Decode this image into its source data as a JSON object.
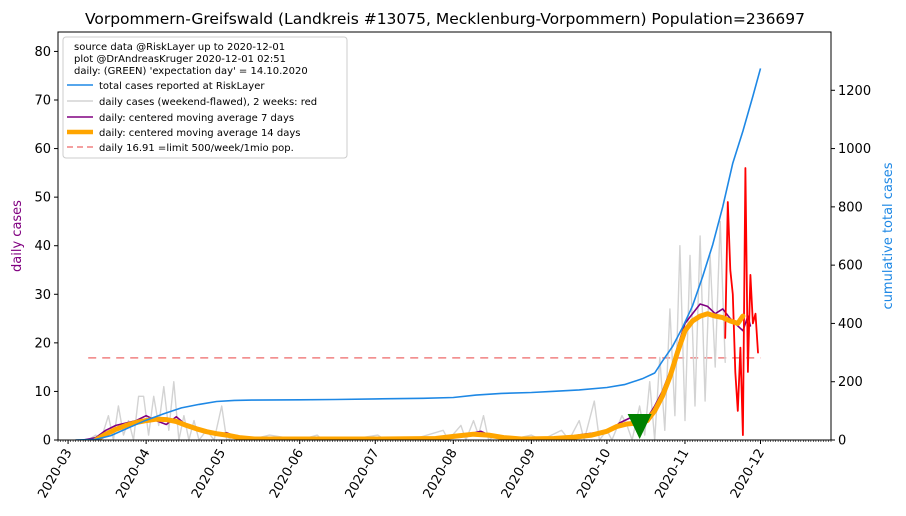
{
  "chart_data": {
    "type": "line",
    "title": "Vorpommern-Greifswald (Landkreis #13075, Mecklenburg-Vorpommern) Population=236697",
    "ylabel_left": "daily cases",
    "ylabel_right": "cumulative total cases",
    "xlim": [
      "2020-02-26",
      "2020-12-29"
    ],
    "ylim_left": [
      0,
      84
    ],
    "ylim_right": [
      0,
      1400
    ],
    "x_ticks": [
      "2020-03",
      "2020-04",
      "2020-05",
      "2020-06",
      "2020-07",
      "2020-08",
      "2020-09",
      "2020-10",
      "2020-11",
      "2020-12"
    ],
    "y_left_ticks": [
      "0",
      "10",
      "20",
      "30",
      "40",
      "50",
      "60",
      "70",
      "80"
    ],
    "y_right_ticks": [
      "0",
      "200",
      "400",
      "600",
      "800",
      "1000",
      "1200"
    ],
    "legend": {
      "placement": "upper-left",
      "header_lines": [
        "source data @RiskLayer up to 2020-12-01",
        "plot @DrAndreasKruger 2020-12-01 02:51",
        "daily: (GREEN) 'expectation day' = 14.10.2020"
      ],
      "entries": [
        "total cases reported at RiskLayer",
        "daily cases (weekend-flawed), 2 weeks: red",
        "daily: centered moving average 7 days",
        "daily: centered moving average 14 days",
        "daily 16.91 =limit 500/week/1mio pop."
      ]
    },
    "colors": {
      "total": "#1e88e5",
      "daily": "#d3d3d3",
      "daily_recent": "#ff0000",
      "ma7": "#800080",
      "ma14": "#ffa500",
      "limit": "#f08080",
      "expectation_marker": "#008000",
      "ylabel_left": "#800080",
      "ylabel_right": "#1e88e5"
    },
    "limit_value": 16.91,
    "limit_range": [
      "2020-03-09",
      "2020-12-01"
    ],
    "expectation_day": "2020-10-14",
    "series": [
      {
        "name": "total cases reported at RiskLayer",
        "axis": "right",
        "points": [
          [
            "2020-03-04",
            0
          ],
          [
            "2020-03-12",
            2
          ],
          [
            "2020-03-18",
            15
          ],
          [
            "2020-03-25",
            42
          ],
          [
            "2020-04-01",
            68
          ],
          [
            "2020-04-08",
            90
          ],
          [
            "2020-04-15",
            110
          ],
          [
            "2020-04-22",
            122
          ],
          [
            "2020-04-29",
            132
          ],
          [
            "2020-05-06",
            136
          ],
          [
            "2020-05-13",
            137
          ],
          [
            "2020-06-01",
            138
          ],
          [
            "2020-06-15",
            139
          ],
          [
            "2020-07-01",
            141
          ],
          [
            "2020-07-20",
            143
          ],
          [
            "2020-08-01",
            146
          ],
          [
            "2020-08-10",
            154
          ],
          [
            "2020-08-20",
            160
          ],
          [
            "2020-09-01",
            163
          ],
          [
            "2020-09-10",
            167
          ],
          [
            "2020-09-20",
            172
          ],
          [
            "2020-10-01",
            180
          ],
          [
            "2020-10-08",
            190
          ],
          [
            "2020-10-15",
            210
          ],
          [
            "2020-10-20",
            230
          ],
          [
            "2020-10-23",
            270
          ],
          [
            "2020-10-27",
            320
          ],
          [
            "2020-10-31",
            385
          ],
          [
            "2020-11-04",
            460
          ],
          [
            "2020-11-08",
            560
          ],
          [
            "2020-11-12",
            670
          ],
          [
            "2020-11-16",
            800
          ],
          [
            "2020-11-20",
            950
          ],
          [
            "2020-11-24",
            1060
          ],
          [
            "2020-11-28",
            1180
          ],
          [
            "2020-12-01",
            1275
          ]
        ]
      },
      {
        "name": "daily cases (weekend-flawed), 2 weeks: red",
        "axis": "left",
        "points": [
          [
            "2020-03-04",
            0
          ],
          [
            "2020-03-09",
            0
          ],
          [
            "2020-03-12",
            1
          ],
          [
            "2020-03-14",
            0
          ],
          [
            "2020-03-17",
            5
          ],
          [
            "2020-03-19",
            0
          ],
          [
            "2020-03-21",
            7
          ],
          [
            "2020-03-23",
            1
          ],
          [
            "2020-03-25",
            4
          ],
          [
            "2020-03-27",
            0
          ],
          [
            "2020-03-29",
            9
          ],
          [
            "2020-03-31",
            9
          ],
          [
            "2020-04-02",
            1
          ],
          [
            "2020-04-04",
            9
          ],
          [
            "2020-04-06",
            3
          ],
          [
            "2020-04-08",
            11
          ],
          [
            "2020-04-10",
            2
          ],
          [
            "2020-04-12",
            12
          ],
          [
            "2020-04-14",
            0
          ],
          [
            "2020-04-16",
            5
          ],
          [
            "2020-04-18",
            0
          ],
          [
            "2020-04-20",
            4
          ],
          [
            "2020-04-22",
            0
          ],
          [
            "2020-04-25",
            2
          ],
          [
            "2020-04-28",
            0
          ],
          [
            "2020-05-01",
            7
          ],
          [
            "2020-05-03",
            0
          ],
          [
            "2020-05-07",
            1
          ],
          [
            "2020-05-12",
            0
          ],
          [
            "2020-05-20",
            1
          ],
          [
            "2020-06-01",
            0
          ],
          [
            "2020-06-08",
            1
          ],
          [
            "2020-06-10",
            0
          ],
          [
            "2020-06-20",
            0
          ],
          [
            "2020-07-02",
            1
          ],
          [
            "2020-07-05",
            0
          ],
          [
            "2020-07-15",
            0
          ],
          [
            "2020-07-28",
            2
          ],
          [
            "2020-07-30",
            0
          ],
          [
            "2020-08-04",
            3
          ],
          [
            "2020-08-06",
            0
          ],
          [
            "2020-08-09",
            4
          ],
          [
            "2020-08-11",
            1
          ],
          [
            "2020-08-13",
            5
          ],
          [
            "2020-08-15",
            0
          ],
          [
            "2020-08-18",
            1
          ],
          [
            "2020-08-23",
            0
          ],
          [
            "2020-09-01",
            1
          ],
          [
            "2020-09-05",
            0
          ],
          [
            "2020-09-13",
            2
          ],
          [
            "2020-09-16",
            0
          ],
          [
            "2020-09-20",
            4
          ],
          [
            "2020-09-22",
            0
          ],
          [
            "2020-09-26",
            8
          ],
          [
            "2020-09-28",
            0
          ],
          [
            "2020-10-01",
            2
          ],
          [
            "2020-10-03",
            0
          ],
          [
            "2020-10-07",
            5
          ],
          [
            "2020-10-09",
            3
          ],
          [
            "2020-10-11",
            0
          ],
          [
            "2020-10-14",
            7
          ],
          [
            "2020-10-16",
            1
          ],
          [
            "2020-10-18",
            12
          ],
          [
            "2020-10-20",
            0
          ],
          [
            "2020-10-22",
            17
          ],
          [
            "2020-10-24",
            2
          ],
          [
            "2020-10-26",
            27
          ],
          [
            "2020-10-28",
            5
          ],
          [
            "2020-10-30",
            40
          ],
          [
            "2020-11-01",
            4
          ],
          [
            "2020-11-03",
            38
          ],
          [
            "2020-11-05",
            7
          ],
          [
            "2020-11-07",
            42
          ],
          [
            "2020-11-09",
            8
          ],
          [
            "2020-11-11",
            38
          ],
          [
            "2020-11-13",
            15
          ],
          [
            "2020-11-15",
            45
          ],
          [
            "2020-11-17",
            16
          ]
        ]
      },
      {
        "name": "daily cases, last 2 weeks (red)",
        "axis": "left",
        "points": [
          [
            "2020-11-17",
            21
          ],
          [
            "2020-11-18",
            49
          ],
          [
            "2020-11-19",
            35
          ],
          [
            "2020-11-20",
            30
          ],
          [
            "2020-11-21",
            14
          ],
          [
            "2020-11-22",
            6
          ],
          [
            "2020-11-23",
            19
          ],
          [
            "2020-11-24",
            1
          ],
          [
            "2020-11-25",
            56
          ],
          [
            "2020-11-26",
            14
          ],
          [
            "2020-11-27",
            34
          ],
          [
            "2020-11-28",
            24
          ],
          [
            "2020-11-29",
            26
          ],
          [
            "2020-11-30",
            18
          ]
        ]
      },
      {
        "name": "daily: centered moving average 7 days",
        "axis": "left",
        "points": [
          [
            "2020-03-07",
            0
          ],
          [
            "2020-03-12",
            0.5
          ],
          [
            "2020-03-16",
            2
          ],
          [
            "2020-03-20",
            3
          ],
          [
            "2020-03-24",
            3.5
          ],
          [
            "2020-03-28",
            4
          ],
          [
            "2020-04-01",
            5
          ],
          [
            "2020-04-05",
            4
          ],
          [
            "2020-04-09",
            3.2
          ],
          [
            "2020-04-13",
            4.8
          ],
          [
            "2020-04-17",
            3
          ],
          [
            "2020-04-21",
            2
          ],
          [
            "2020-04-25",
            1.5
          ],
          [
            "2020-04-29",
            1
          ],
          [
            "2020-05-03",
            1.5
          ],
          [
            "2020-05-07",
            0.6
          ],
          [
            "2020-05-12",
            0.2
          ],
          [
            "2020-06-01",
            0.2
          ],
          [
            "2020-07-01",
            0.2
          ],
          [
            "2020-07-28",
            0.6
          ],
          [
            "2020-08-05",
            1
          ],
          [
            "2020-08-12",
            1.8
          ],
          [
            "2020-08-17",
            0.6
          ],
          [
            "2020-08-24",
            0.2
          ],
          [
            "2020-09-05",
            0.2
          ],
          [
            "2020-09-15",
            0.6
          ],
          [
            "2020-09-22",
            1.2
          ],
          [
            "2020-09-27",
            1.5
          ],
          [
            "2020-10-02",
            1.8
          ],
          [
            "2020-10-06",
            3.5
          ],
          [
            "2020-10-10",
            4.5
          ],
          [
            "2020-10-13",
            4
          ],
          [
            "2020-10-17",
            4.5
          ],
          [
            "2020-10-20",
            7
          ],
          [
            "2020-10-23",
            10
          ],
          [
            "2020-10-26",
            14
          ],
          [
            "2020-10-29",
            19
          ],
          [
            "2020-11-01",
            24
          ],
          [
            "2020-11-04",
            26
          ],
          [
            "2020-11-07",
            28
          ],
          [
            "2020-11-10",
            27.5
          ],
          [
            "2020-11-13",
            26
          ],
          [
            "2020-11-16",
            27
          ],
          [
            "2020-11-19",
            25
          ],
          [
            "2020-11-22",
            23.5
          ],
          [
            "2020-11-24",
            22.5
          ],
          [
            "2020-11-26",
            25.5
          ],
          [
            "2020-11-27",
            23.5
          ]
        ]
      },
      {
        "name": "daily: centered moving average 14 days",
        "axis": "left",
        "points": [
          [
            "2020-03-12",
            0
          ],
          [
            "2020-03-16",
            1.2
          ],
          [
            "2020-03-20",
            2.2
          ],
          [
            "2020-03-24",
            3
          ],
          [
            "2020-03-28",
            3.6
          ],
          [
            "2020-04-01",
            4
          ],
          [
            "2020-04-05",
            4.3
          ],
          [
            "2020-04-09",
            4.2
          ],
          [
            "2020-04-13",
            3.8
          ],
          [
            "2020-04-17",
            3
          ],
          [
            "2020-04-21",
            2.3
          ],
          [
            "2020-04-25",
            1.7
          ],
          [
            "2020-04-29",
            1.3
          ],
          [
            "2020-05-03",
            1
          ],
          [
            "2020-05-08",
            0.5
          ],
          [
            "2020-05-14",
            0.2
          ],
          [
            "2020-06-01",
            0.2
          ],
          [
            "2020-07-01",
            0.2
          ],
          [
            "2020-07-25",
            0.3
          ],
          [
            "2020-08-02",
            0.8
          ],
          [
            "2020-08-09",
            1.2
          ],
          [
            "2020-08-15",
            1
          ],
          [
            "2020-08-21",
            0.5
          ],
          [
            "2020-08-28",
            0.2
          ],
          [
            "2020-09-10",
            0.3
          ],
          [
            "2020-09-18",
            0.6
          ],
          [
            "2020-09-25",
            1
          ],
          [
            "2020-10-01",
            1.8
          ],
          [
            "2020-10-05",
            2.8
          ],
          [
            "2020-10-09",
            3.3
          ],
          [
            "2020-10-13",
            3.5
          ],
          [
            "2020-10-17",
            4
          ],
          [
            "2020-10-20",
            6
          ],
          [
            "2020-10-23",
            9
          ],
          [
            "2020-10-26",
            13
          ],
          [
            "2020-10-29",
            18
          ],
          [
            "2020-11-01",
            22.5
          ],
          [
            "2020-11-04",
            24.5
          ],
          [
            "2020-11-07",
            25.5
          ],
          [
            "2020-11-10",
            26
          ],
          [
            "2020-11-13",
            25.5
          ],
          [
            "2020-11-16",
            25.2
          ],
          [
            "2020-11-19",
            24.5
          ],
          [
            "2020-11-22",
            24
          ],
          [
            "2020-11-24",
            25.5
          ]
        ]
      }
    ]
  }
}
